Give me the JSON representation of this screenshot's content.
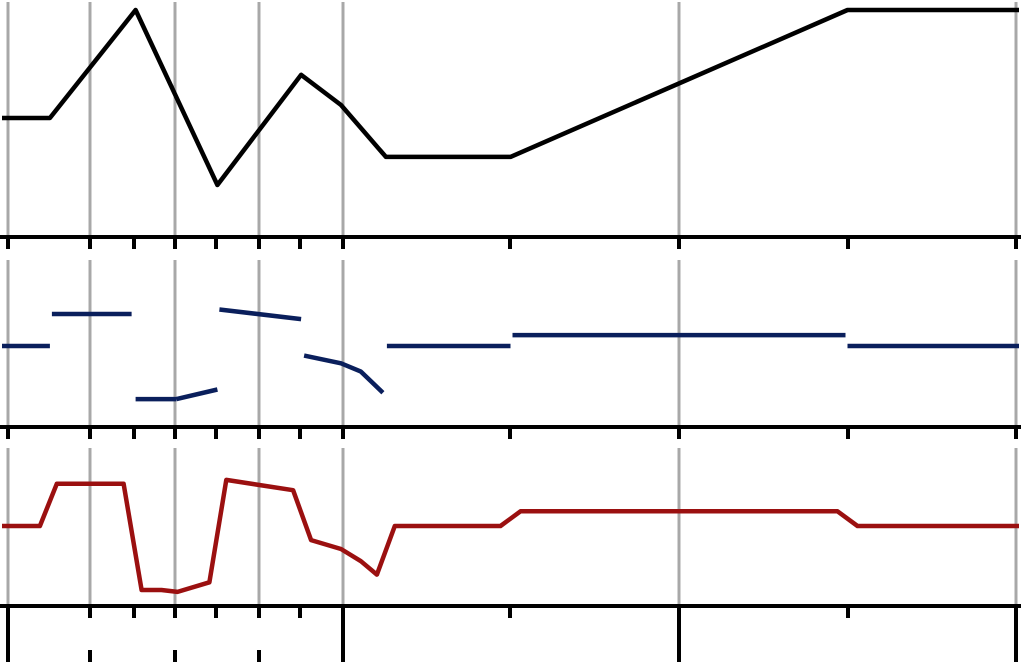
{
  "chart_data": [
    {
      "type": "line",
      "panel": "top",
      "title": "",
      "xlabel": "",
      "ylabel": "",
      "xlim": [
        0,
        1020
      ],
      "ylim": [
        0,
        10
      ],
      "grid": true,
      "color": "#000000",
      "segments": [
        [
          [
            0,
            5
          ],
          [
            48,
            5
          ],
          [
            134,
            10
          ],
          [
            216,
            1.9
          ],
          [
            300,
            7
          ],
          [
            340,
            5.6
          ],
          [
            385,
            3.2
          ],
          [
            510,
            3.2
          ],
          [
            848,
            10
          ],
          [
            1020,
            10
          ]
        ]
      ]
    },
    {
      "type": "line",
      "panel": "middle",
      "title": "",
      "xlabel": "",
      "ylabel": "",
      "xlim": [
        0,
        1020
      ],
      "ylim": [
        -1,
        1
      ],
      "grid": true,
      "color": "#0a1f5c",
      "segments": [
        [
          [
            0,
            0
          ],
          [
            48,
            0
          ]
        ],
        [
          [
            50,
            0.5
          ],
          [
            130,
            0.5
          ]
        ],
        [
          [
            134,
            -0.83
          ],
          [
            175,
            -0.83
          ]
        ],
        [
          [
            175,
            -0.83
          ],
          [
            216,
            -0.68
          ]
        ],
        [
          [
            218,
            0.57
          ],
          [
            300,
            0.42
          ]
        ],
        [
          [
            303,
            -0.15
          ],
          [
            340,
            -0.27
          ],
          [
            360,
            -0.4
          ],
          [
            382,
            -0.73
          ]
        ],
        [
          [
            386,
            0
          ],
          [
            510,
            0
          ]
        ],
        [
          [
            512,
            0.17
          ],
          [
            846,
            0.17
          ]
        ],
        [
          [
            848,
            0
          ],
          [
            1020,
            0
          ]
        ]
      ]
    },
    {
      "type": "line",
      "panel": "bottom",
      "title": "",
      "xlabel": "",
      "ylabel": "",
      "xlim": [
        0,
        1020
      ],
      "ylim": [
        -1,
        1
      ],
      "grid": true,
      "color": "#9b1010",
      "segments": [
        [
          [
            0,
            0
          ],
          [
            38,
            0
          ],
          [
            55,
            0.66
          ],
          [
            122,
            0.66
          ],
          [
            140,
            -1.0
          ],
          [
            160,
            -1.0
          ],
          [
            176,
            -1.03
          ],
          [
            208,
            -0.88
          ],
          [
            225,
            0.72
          ],
          [
            292,
            0.56
          ],
          [
            310,
            -0.22
          ],
          [
            340,
            -0.36
          ],
          [
            360,
            -0.55
          ],
          [
            376,
            -0.76
          ],
          [
            394,
            0
          ],
          [
            500,
            0
          ],
          [
            520,
            0.23
          ],
          [
            838,
            0.23
          ],
          [
            858,
            0
          ],
          [
            1020,
            0
          ]
        ]
      ]
    }
  ],
  "x_grid": [
    8,
    90,
    175,
    259,
    343,
    679,
    1016
  ],
  "x_minor_ticks": [
    134,
    216,
    300,
    510,
    848
  ]
}
